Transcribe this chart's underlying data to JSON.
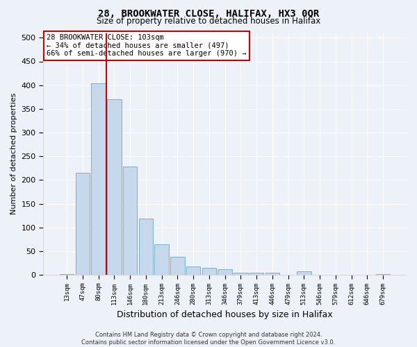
{
  "title": "28, BROOKWATER CLOSE, HALIFAX, HX3 0QR",
  "subtitle": "Size of property relative to detached houses in Halifax",
  "xlabel": "Distribution of detached houses by size in Halifax",
  "ylabel": "Number of detached properties",
  "categories": [
    "13sqm",
    "47sqm",
    "80sqm",
    "113sqm",
    "146sqm",
    "180sqm",
    "213sqm",
    "246sqm",
    "280sqm",
    "313sqm",
    "346sqm",
    "379sqm",
    "413sqm",
    "446sqm",
    "479sqm",
    "513sqm",
    "546sqm",
    "579sqm",
    "612sqm",
    "646sqm",
    "679sqm"
  ],
  "values": [
    2,
    215,
    404,
    370,
    228,
    118,
    65,
    38,
    18,
    15,
    12,
    5,
    4,
    5,
    0,
    8,
    0,
    0,
    0,
    0,
    2
  ],
  "bar_color": "#c6d9ec",
  "bar_edge_color": "#7aaece",
  "vline_x_idx": 2.5,
  "vline_color": "#cc0000",
  "annotation_text": "28 BROOKWATER CLOSE: 103sqm\n← 34% of detached houses are smaller (497)\n66% of semi-detached houses are larger (970) →",
  "annotation_box_color": "#ffffff",
  "annotation_box_edge": "#cc0000",
  "footer": "Contains HM Land Registry data © Crown copyright and database right 2024.\nContains public sector information licensed under the Open Government Licence v3.0.",
  "ylim": [
    0,
    510
  ],
  "yticks": [
    0,
    50,
    100,
    150,
    200,
    250,
    300,
    350,
    400,
    450,
    500
  ],
  "background_color": "#edf2f9",
  "grid_color": "#ffffff",
  "title_fontsize": 10,
  "subtitle_fontsize": 8.5,
  "ylabel_fontsize": 8,
  "xlabel_fontsize": 9
}
